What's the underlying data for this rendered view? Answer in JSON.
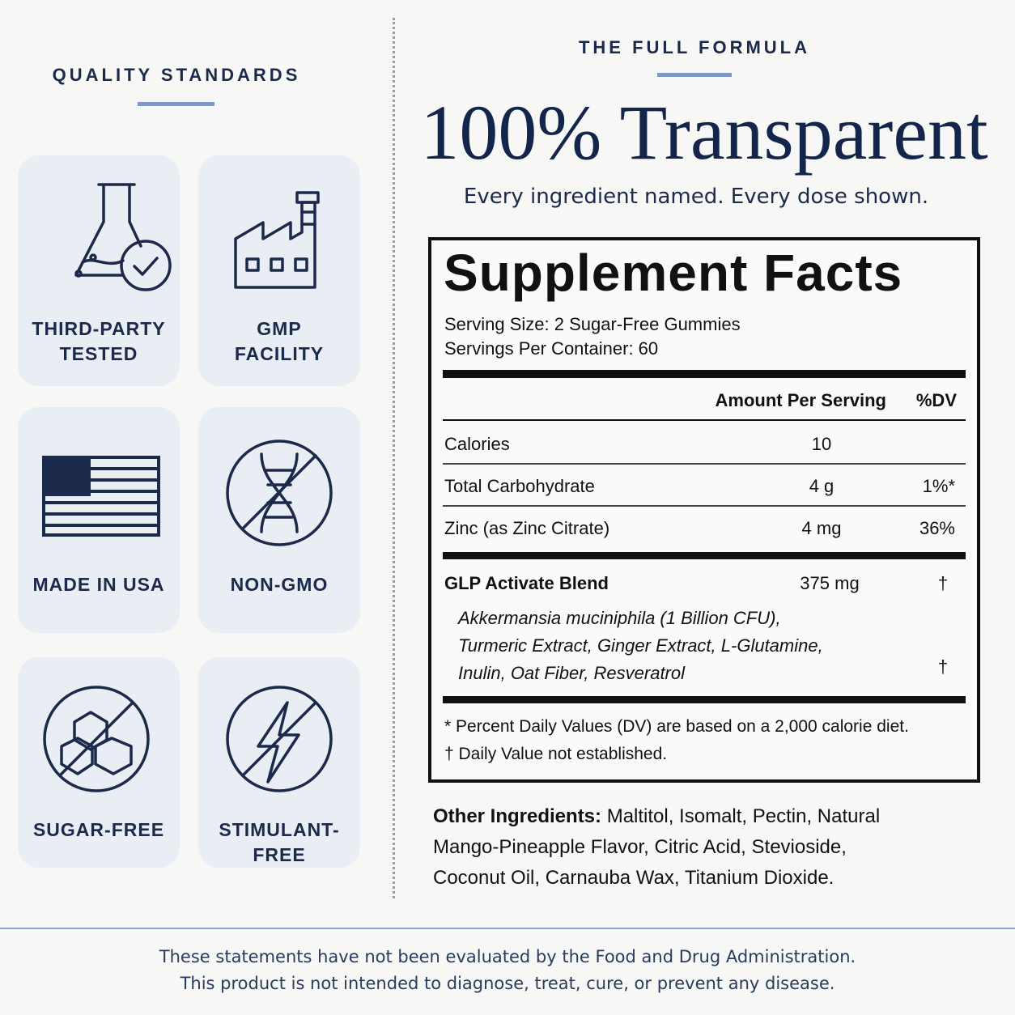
{
  "quality": {
    "title": "QUALITY STANDARDS",
    "badges": [
      {
        "lines": [
          "THIRD-PARTY",
          "TESTED"
        ]
      },
      {
        "lines": [
          "GMP",
          "FACILITY"
        ]
      },
      {
        "lines": [
          "MADE IN USA"
        ]
      },
      {
        "lines": [
          "NON-GMO"
        ]
      },
      {
        "lines": [
          "SUGAR-FREE"
        ]
      },
      {
        "lines": [
          "STIMULANT-FREE"
        ]
      }
    ]
  },
  "formula": {
    "eyebrow": "THE FULL FORMULA",
    "headline": "100% Transparent",
    "subhead": "Every ingredient named. Every dose shown."
  },
  "facts": {
    "title": "Supplement Facts",
    "serving_size": "Serving Size: 2 Sugar-Free Gummies",
    "servings": "Servings Per Container: 60",
    "header": [
      "Amount Per Serving",
      "%DV"
    ],
    "rows": [
      {
        "name": "Calories",
        "amount": "10"
      },
      {
        "name": "Total Carbohydrate",
        "amount": "4 g",
        "dv": "1%*"
      },
      {
        "name": "Zinc (as Zinc Citrate)",
        "amount": "4 mg",
        "dv": "36%"
      }
    ],
    "blend": {
      "name": "GLP Activate Blend",
      "amount": "375 mg",
      "dv": "†",
      "ingredients": [
        "Akkermansia muciniphila (1 Billion CFU),",
        "Turmeric Extract, Ginger Extract, L-Glutamine,",
        "Inulin, Oat Fiber, Resveratrol"
      ],
      "ingredients_dv": "†"
    },
    "footnotes": [
      "* Percent Daily Values (DV) are based on a 2,000 calorie diet.",
      "† Daily Value not established."
    ]
  },
  "other": {
    "label": "Other Ingredients:",
    "lines": [
      "Maltitol, Isomalt, Pectin, Natural",
      "Mango-Pineapple Flavor, Citric Acid, Stevioside,",
      "Coconut Oil, Carnauba Wax, Titanium Dioxide."
    ]
  },
  "footer": {
    "lines": [
      "These statements have not been evaluated by the Food and Drug Administration.",
      "This product is not intended to diagnose, treat, cure, or prevent any disease."
    ]
  }
}
